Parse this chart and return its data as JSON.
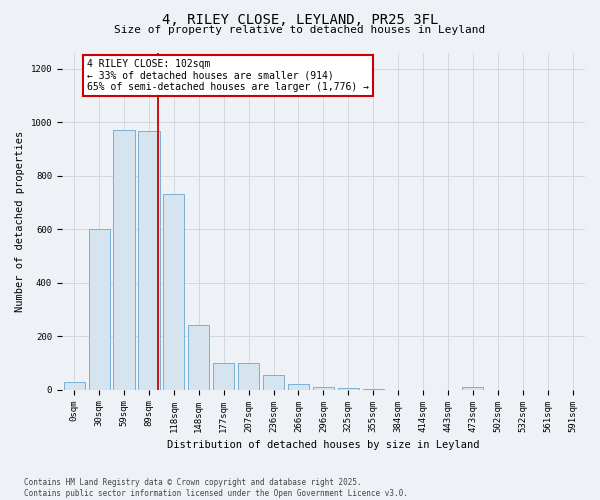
{
  "title_line1": "4, RILEY CLOSE, LEYLAND, PR25 3FL",
  "title_line2": "Size of property relative to detached houses in Leyland",
  "xlabel": "Distribution of detached houses by size in Leyland",
  "ylabel": "Number of detached properties",
  "footnote": "Contains HM Land Registry data © Crown copyright and database right 2025.\nContains public sector information licensed under the Open Government Licence v3.0.",
  "bar_color": "#d6e4f0",
  "bar_edge_color": "#7aafd4",
  "categories": [
    "0sqm",
    "30sqm",
    "59sqm",
    "89sqm",
    "118sqm",
    "148sqm",
    "177sqm",
    "207sqm",
    "236sqm",
    "266sqm",
    "296sqm",
    "325sqm",
    "355sqm",
    "384sqm",
    "414sqm",
    "443sqm",
    "473sqm",
    "502sqm",
    "532sqm",
    "561sqm",
    "591sqm"
  ],
  "values": [
    30,
    600,
    970,
    965,
    730,
    240,
    100,
    100,
    55,
    20,
    10,
    5,
    2,
    0,
    0,
    0,
    10,
    0,
    0,
    0,
    0
  ],
  "ylim": [
    0,
    1260
  ],
  "yticks": [
    0,
    200,
    400,
    600,
    800,
    1000,
    1200
  ],
  "vline_x": 3.35,
  "vline_color": "#cc0000",
  "annotation_text": "4 RILEY CLOSE: 102sqm\n← 33% of detached houses are smaller (914)\n65% of semi-detached houses are larger (1,776) →",
  "annotation_box_color": "#ffffff",
  "annotation_border_color": "#cc0000",
  "grid_color": "#d0d8e0",
  "background_color": "#eef2f7",
  "plot_bg_color": "#eef2f7",
  "title_fontsize": 10,
  "subtitle_fontsize": 8,
  "tick_fontsize": 6.5,
  "label_fontsize": 7.5,
  "footnote_fontsize": 5.5,
  "annot_fontsize": 7
}
